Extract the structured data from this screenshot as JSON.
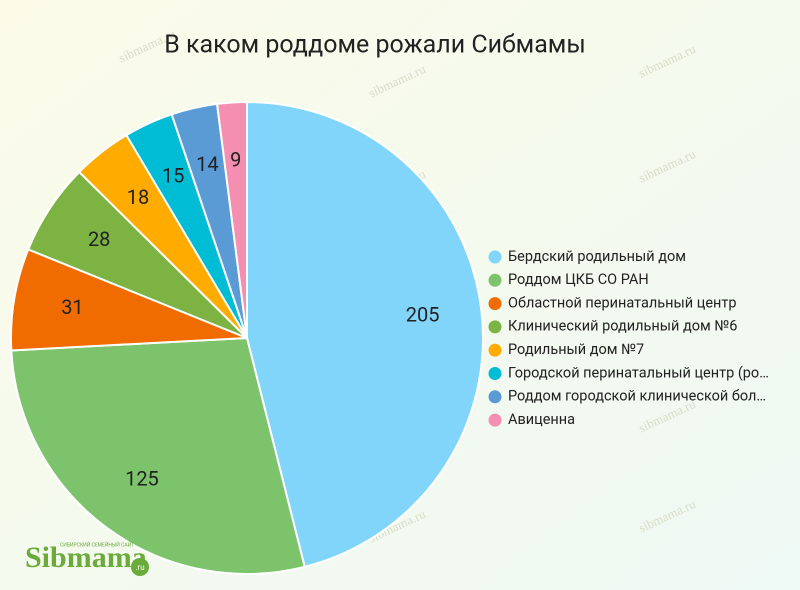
{
  "chart_data": {
    "type": "pie",
    "title": "В каком роддоме рожали Сибмамы",
    "categories": [
      "Бердский родильный дом",
      "Роддом ЦКБ СО РАН",
      "Областной перинатальный центр",
      "Клинический родильный дом №6",
      "Родильный дом №7",
      "Городской перинатальный центр (ро…",
      "Роддом городской клинической бол…",
      "Авиценна"
    ],
    "values": [
      205,
      125,
      31,
      28,
      18,
      15,
      14,
      9
    ],
    "colors": [
      "#81d4fa",
      "#7dc36b",
      "#f06c00",
      "#7cb342",
      "#ffab00",
      "#00bcd4",
      "#5b9bd5",
      "#f48fb1"
    ],
    "legend": "right"
  },
  "watermark": "sibmama.ru",
  "logo": {
    "name": "Sibmama",
    "tagline": "СИБИРСКИЙ СЕМЕЙНЫЙ САЙТ",
    "suffix": ".ru"
  }
}
